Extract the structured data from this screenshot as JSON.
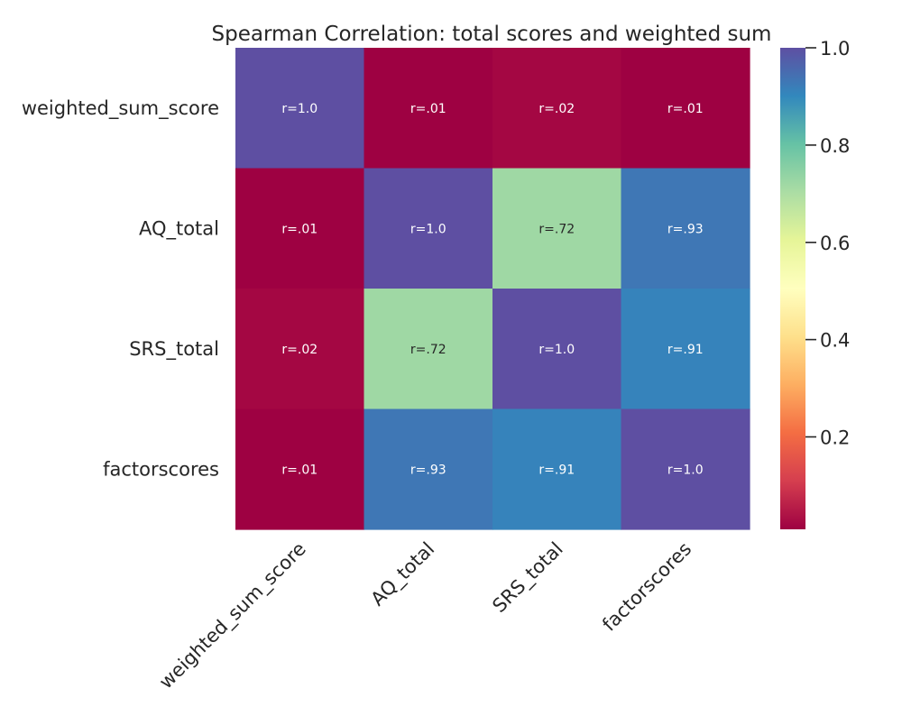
{
  "chart_data": {
    "type": "heatmap",
    "title": "Spearman Correlation: total scores and weighted sum",
    "xlabel": "",
    "ylabel": "",
    "rows": [
      "weighted_sum_score",
      "AQ_total",
      "SRS_total",
      "factorscores"
    ],
    "columns": [
      "weighted_sum_score",
      "AQ_total",
      "SRS_total",
      "factorscores"
    ],
    "values": [
      [
        1.0,
        0.01,
        0.02,
        0.01
      ],
      [
        0.01,
        1.0,
        0.72,
        0.93
      ],
      [
        0.02,
        0.72,
        1.0,
        0.91
      ],
      [
        0.01,
        0.93,
        0.91,
        1.0
      ]
    ],
    "annotations": [
      [
        "r=1.0",
        "r=.01",
        "r=.02",
        "r=.01"
      ],
      [
        "r=.01",
        "r=1.0",
        "r=.72",
        "r=.93"
      ],
      [
        "r=.02",
        "r=.72",
        "r=1.0",
        "r=.91"
      ],
      [
        "r=.01",
        "r=.93",
        "r=.91",
        "r=1.0"
      ]
    ],
    "colormap": "Spectral",
    "colorbar": {
      "range": [
        0.01,
        1.0
      ],
      "ticks": [
        0.2,
        0.4,
        0.6,
        0.8,
        1.0
      ],
      "tick_labels": [
        "0.2",
        "0.4",
        "0.6",
        "0.8",
        "1.0"
      ]
    }
  }
}
